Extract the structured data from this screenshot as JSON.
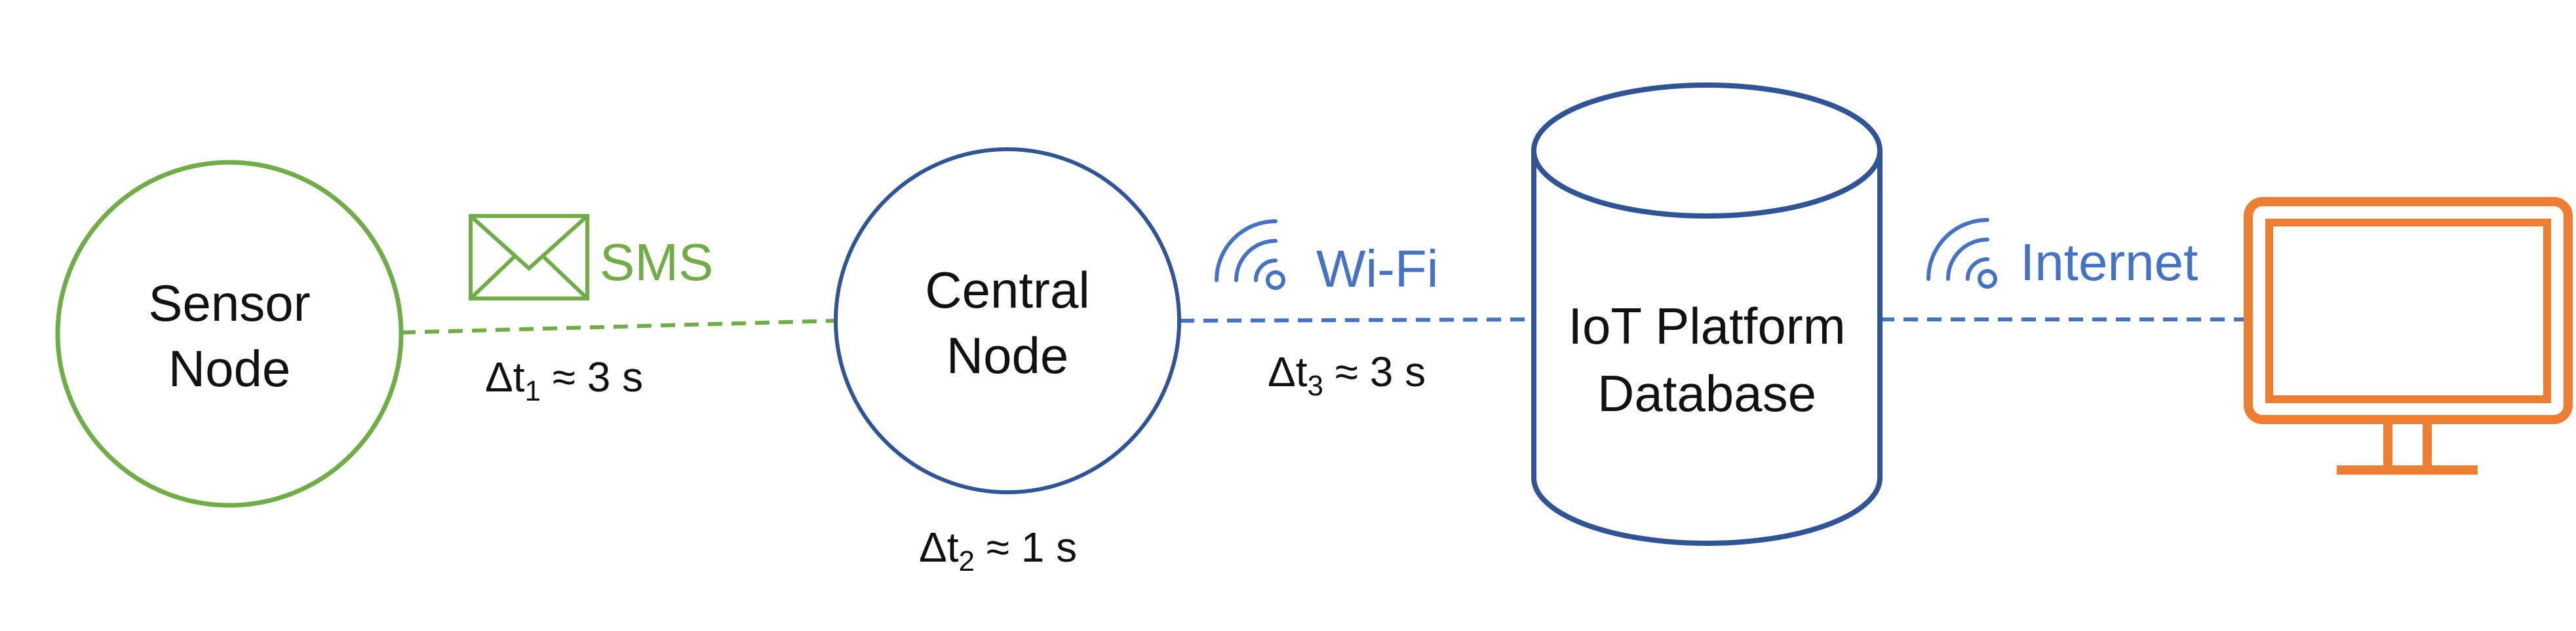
{
  "nodes": {
    "sensor": {
      "line1": "Sensor",
      "line2": "Node"
    },
    "central": {
      "line1": "Central",
      "line2": "Node"
    },
    "database": {
      "line1": "IoT Platform",
      "line2": "Database"
    }
  },
  "links": {
    "sms": {
      "label": "SMS",
      "icon": "envelope-icon"
    },
    "wifi": {
      "label": "Wi-Fi",
      "icon": "wifi-icon"
    },
    "internet": {
      "label": "Internet",
      "icon": "wifi-icon"
    }
  },
  "delays": {
    "t1": {
      "symbol": "Δt",
      "sub": "1",
      "value": " ≈ 3 s"
    },
    "t2": {
      "symbol": "Δt",
      "sub": "2",
      "value": " ≈ 1 s"
    },
    "t3": {
      "symbol": "Δt",
      "sub": "3",
      "value": " ≈ 3 s"
    }
  },
  "colors": {
    "sensor": "#70AD47",
    "central": "#2F5597",
    "link_blue": "#4472C4",
    "monitor": "#ED7D31"
  }
}
